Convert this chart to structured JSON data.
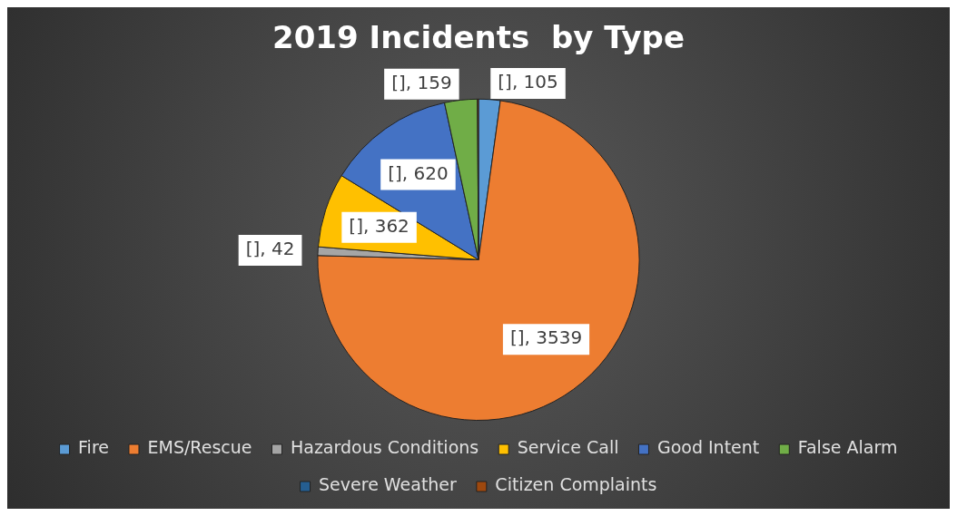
{
  "chart_data": {
    "type": "pie",
    "title": "2019 Incidents  by Type",
    "categories": [
      "Fire",
      "EMS/Rescue",
      "Hazardous Conditions",
      "Service Call",
      "Good Intent",
      "False Alarm",
      "Severe Weather",
      "Citizen Complaints"
    ],
    "values": [
      105,
      3539,
      42,
      362,
      620,
      159,
      0,
      5
    ],
    "colors": [
      "#5b9bd5",
      "#ed7d31",
      "#a5a5a5",
      "#ffc000",
      "#4472c4",
      "#70ad47",
      "#255e91",
      "#9e480e"
    ],
    "value_labels": [
      "[], 105",
      "[], 3539",
      "[], 42",
      "[], 362",
      "[], 620",
      "[], 159",
      null,
      null
    ],
    "legend": "bottom"
  }
}
